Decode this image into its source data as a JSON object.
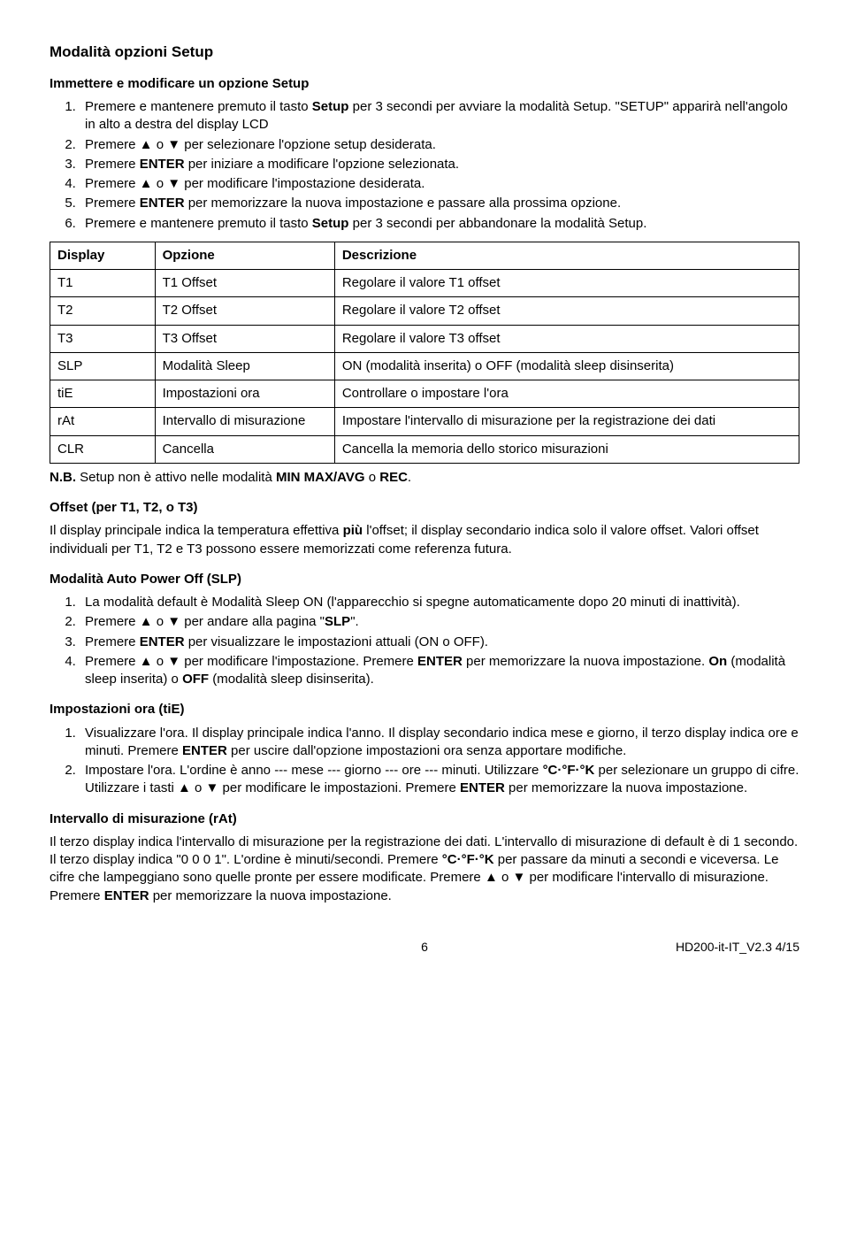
{
  "title": "Modalità opzioni Setup",
  "sec1": {
    "heading": "Immettere e modificare un opzione Setup",
    "items": [
      {
        "pre": "Premere e mantenere premuto il tasto ",
        "bold": "Setup",
        "post": " per 3 secondi per avviare la modalità Setup. \"SETUP\" apparirà nell'angolo in alto a destra del display LCD"
      },
      {
        "pre": "Premere ▲ o ▼ per selezionare l'opzione setup desiderata."
      },
      {
        "pre": "Premere ",
        "bold": "ENTER",
        "post": " per iniziare a modificare l'opzione selezionata."
      },
      {
        "pre": "Premere ▲ o ▼ per modificare l'impostazione desiderata."
      },
      {
        "pre": "Premere ",
        "bold": "ENTER",
        "post": " per memorizzare la nuova impostazione e passare alla prossima opzione."
      },
      {
        "pre": "Premere e mantenere premuto il tasto ",
        "bold": "Setup",
        "post": " per 3 secondi per abbandonare la modalità Setup."
      }
    ]
  },
  "table": {
    "headers": [
      "Display",
      "Opzione",
      "Descrizione"
    ],
    "rows": [
      [
        "T1",
        "T1 Offset",
        "Regolare il valore T1 offset"
      ],
      [
        "T2",
        "T2 Offset",
        "Regolare il valore T2 offset"
      ],
      [
        "T3",
        "T3 Offset",
        "Regolare il valore T3 offset"
      ],
      [
        "SLP",
        "Modalità Sleep",
        "ON (modalità inserita) o OFF (modalità sleep disinserita)"
      ],
      [
        "tiE",
        "Impostazioni ora",
        "Controllare o impostare l'ora"
      ],
      [
        "rAt",
        "Intervallo di misurazione",
        "Impostare l'intervallo di misurazione per la registrazione dei dati"
      ],
      [
        "CLR",
        "Cancella",
        "Cancella la memoria dello storico misurazioni"
      ]
    ]
  },
  "nb": {
    "pre": "N.B.",
    "mid": " Setup non è attivo nelle modalità ",
    "bold2": "MIN MAX/AVG",
    "mid2": " o ",
    "bold3": "REC",
    "post": "."
  },
  "offset": {
    "heading": "Offset (per T1, T2, o T3)",
    "p1_a": "Il display principale indica la temperatura effettiva ",
    "p1_bold": "più",
    "p1_b": " l'offset; il display secondario indica solo il valore offset. Valori offset individuali per T1, T2 e T3 possono essere memorizzati come referenza futura."
  },
  "slp": {
    "heading": "Modalità Auto Power Off (SLP)",
    "items": [
      "La modalità default è Modalità Sleep ON (l'apparecchio si spegne automaticamente dopo 20 minuti di inattività).",
      "Premere ▲ o ▼ per andare alla pagina \"SLP\".",
      "Premere ENTER per visualizzare le impostazioni attuali (ON o OFF).",
      "Premere ▲ o ▼ per modificare l'impostazione. Premere ENTER per memorizzare la nuova impostazione. On (modalità sleep inserita) o OFF (modalità sleep disinserita)."
    ]
  },
  "tie": {
    "heading": "Impostazioni ora (tiE)",
    "i1a": "Visualizzare l'ora. Il display principale indica l'anno. Il display secondario indica mese e giorno, il terzo display indica ore e minuti. Premere ",
    "i1bold": "ENTER",
    "i1b": " per uscire dall'opzione impostazioni ora senza apportare modifiche.",
    "i2a": "Impostare l'ora. L'ordine è anno --- mese --- giorno --- ore --- minuti. Utilizzare ",
    "i2bold1": "°C·°F·°K",
    "i2b": " per selezionare un gruppo di cifre. Utilizzare i tasti ▲ o ▼ per modificare le impostazioni. Premere ",
    "i2bold2": "ENTER",
    "i2c": " per memorizzare la nuova impostazione."
  },
  "rat": {
    "heading": "Intervallo di misurazione (rAt)",
    "p_a": "Il terzo display indica l'intervallo di misurazione per la registrazione dei dati. L'intervallo di misurazione di default è di 1 secondo. Il terzo display indica \"0 0   0 1\". L'ordine è minuti/secondi. Premere ",
    "p_bold1": "°C·°F·°K",
    "p_b": " per passare da minuti a secondi e viceversa. Le cifre che lampeggiano sono quelle pronte per essere modificate. Premere ▲ o ▼ per modificare l'intervallo di misurazione. Premere ",
    "p_bold2": "ENTER",
    "p_c": " per memorizzare la nuova impostazione."
  },
  "footer": {
    "page": "6",
    "doc": "HD200-it-IT_V2.3  4/15"
  }
}
